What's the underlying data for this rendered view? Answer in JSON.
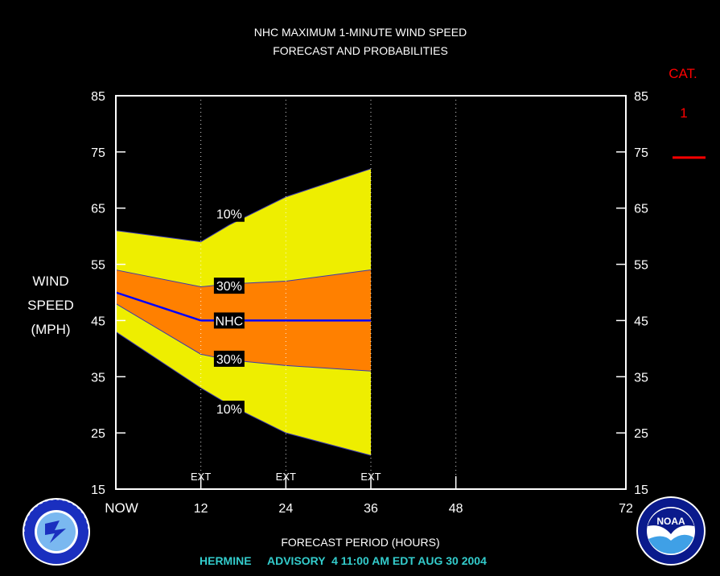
{
  "chart_data": {
    "type": "area",
    "title": [
      "NHC MAXIMUM 1-MINUTE WIND SPEED",
      "FORECAST AND PROBABILITIES"
    ],
    "xlabel": "FORECAST PERIOD (HOURS)",
    "ylabel": [
      "WIND",
      "SPEED",
      "(MPH)"
    ],
    "xlim": [
      0,
      72
    ],
    "ylim": [
      15,
      85
    ],
    "x_ticks": [
      0,
      12,
      24,
      36,
      48,
      72
    ],
    "x_tick_labels": [
      "NOW",
      "12",
      "24",
      "36",
      "48",
      "72"
    ],
    "y_ticks": [
      15,
      25,
      35,
      45,
      55,
      65,
      75,
      85
    ],
    "ext_markers": {
      "x": [
        12,
        24,
        36
      ],
      "label": "EXT"
    },
    "grid": {
      "vertical_dotted_at": [
        12,
        24,
        36,
        48
      ]
    },
    "category": {
      "header": "CAT.",
      "value": "1",
      "threshold_y": 74,
      "color": "#ff0000"
    },
    "colors": {
      "band_10": "#eeee00",
      "band_30": "#ff8000",
      "nhc_line": "#0000ff",
      "grid": "#ffffff"
    },
    "x": [
      0,
      12,
      16,
      24,
      36
    ],
    "series": [
      {
        "name": "10%",
        "role": "upper10",
        "values": [
          61,
          59,
          62,
          67,
          72
        ]
      },
      {
        "name": "30%",
        "role": "upper30",
        "values": [
          54,
          51,
          51.5,
          52,
          54
        ]
      },
      {
        "name": "NHC",
        "role": "nhc",
        "values": [
          50,
          45,
          45,
          45,
          45
        ]
      },
      {
        "name": "30%",
        "role": "lower30",
        "values": [
          48,
          39,
          38,
          37,
          36
        ]
      },
      {
        "name": "10%",
        "role": "lower10",
        "values": [
          43,
          33,
          30,
          25,
          21
        ]
      }
    ],
    "band_labels": [
      {
        "text": "10%",
        "x": 16,
        "y": 64
      },
      {
        "text": "30%",
        "x": 16,
        "y": 51.2
      },
      {
        "text": "NHC",
        "x": 16,
        "y": 45
      },
      {
        "text": "30%",
        "x": 16,
        "y": 38.2
      },
      {
        "text": "10%",
        "x": 16,
        "y": 29.3
      }
    ]
  },
  "advisory": {
    "storm": "HERMINE",
    "text": "ADVISORY  4 11:00 AM EDT AUG 30 2004",
    "color": "#33cccc"
  },
  "logos": {
    "left": "nws-logo",
    "right": "noaa-logo",
    "right_text": "NOAA"
  }
}
